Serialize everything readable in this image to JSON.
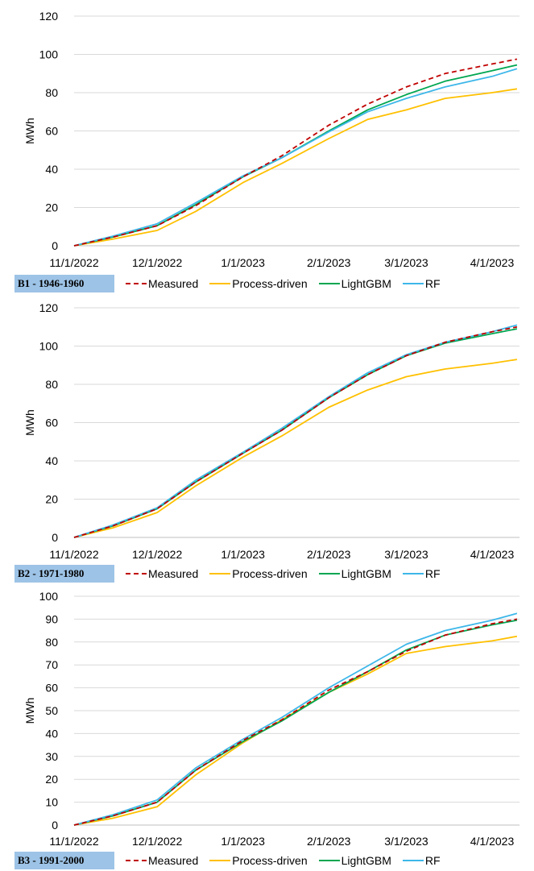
{
  "colors": {
    "Measured": "#c00000",
    "Process-driven": "#ffc000",
    "LightGBM": "#00a651",
    "RF": "#3db7e9"
  },
  "chart_data": [
    {
      "type": "line",
      "panel_label": "B1 - 1946-1960",
      "ylabel": "MWh",
      "ylim": [
        0,
        120
      ],
      "yticks": [
        "0",
        "20",
        "40",
        "60",
        "80",
        "100",
        "120"
      ],
      "xticks": [
        "11/1/2022",
        "12/1/2022",
        "1/1/2023",
        "2/1/2023",
        "3/1/2023",
        "4/1/2023"
      ],
      "x": [
        "11/1/2022",
        "11/15/2022",
        "12/1/2022",
        "12/15/2022",
        "1/1/2023",
        "1/15/2023",
        "2/1/2023",
        "2/15/2023",
        "3/1/2023",
        "3/15/2023",
        "4/1/2023",
        "4/10/2023"
      ],
      "series": [
        {
          "name": "Measured",
          "style": "dashed",
          "values": [
            0,
            4.5,
            10.5,
            21,
            36,
            47,
            63,
            74,
            83,
            90,
            95,
            97.5
          ]
        },
        {
          "name": "Process-driven",
          "style": "solid",
          "values": [
            0,
            3.5,
            8,
            18,
            33,
            43,
            56,
            66,
            71,
            77,
            80,
            82
          ]
        },
        {
          "name": "LightGBM",
          "style": "solid",
          "values": [
            0,
            4.5,
            10.5,
            21.5,
            36,
            46,
            60,
            71,
            79,
            86,
            91.5,
            94.5
          ]
        },
        {
          "name": "RF",
          "style": "solid",
          "values": [
            0,
            5,
            11.5,
            22.5,
            36.5,
            46,
            59.5,
            70,
            77,
            83,
            88.5,
            92.5
          ]
        }
      ]
    },
    {
      "type": "line",
      "panel_label": "B2 - 1971-1980",
      "ylabel": "MWh",
      "ylim": [
        0,
        120
      ],
      "yticks": [
        "0",
        "20",
        "40",
        "60",
        "80",
        "100",
        "120"
      ],
      "xticks": [
        "11/1/2022",
        "12/1/2022",
        "1/1/2023",
        "2/1/2023",
        "3/1/2023",
        "4/1/2023"
      ],
      "x": [
        "11/1/2022",
        "11/15/2022",
        "12/1/2022",
        "12/15/2022",
        "1/1/2023",
        "1/15/2023",
        "2/1/2023",
        "2/15/2023",
        "3/1/2023",
        "3/15/2023",
        "4/1/2023",
        "4/10/2023"
      ],
      "series": [
        {
          "name": "Measured",
          "style": "dashed",
          "values": [
            0,
            6,
            15,
            29,
            44,
            56,
            73,
            85,
            95,
            102,
            107.5,
            110
          ]
        },
        {
          "name": "Process-driven",
          "style": "solid",
          "values": [
            0,
            5,
            13,
            27,
            42,
            53,
            68,
            77,
            84,
            88,
            91,
            93
          ]
        },
        {
          "name": "LightGBM",
          "style": "solid",
          "values": [
            0,
            6,
            15,
            29,
            44,
            56,
            73,
            85,
            95,
            101.5,
            106.5,
            109
          ]
        },
        {
          "name": "RF",
          "style": "solid",
          "values": [
            0,
            6.5,
            15.5,
            30,
            44.5,
            57,
            73.5,
            86,
            95.5,
            102,
            107.5,
            111
          ]
        }
      ]
    },
    {
      "type": "line",
      "panel_label": "B3 - 1991-2000",
      "ylabel": "MWh",
      "ylim": [
        0,
        100
      ],
      "yticks": [
        "0",
        "10",
        "20",
        "30",
        "40",
        "50",
        "60",
        "70",
        "80",
        "90",
        "100"
      ],
      "xticks": [
        "11/1/2022",
        "12/1/2022",
        "1/1/2023",
        "2/1/2023",
        "3/1/2023",
        "4/1/2023"
      ],
      "x": [
        "11/1/2022",
        "11/15/2022",
        "12/1/2022",
        "12/15/2022",
        "1/1/2023",
        "1/15/2023",
        "2/1/2023",
        "2/15/2023",
        "3/1/2023",
        "3/15/2023",
        "4/1/2023",
        "4/10/2023"
      ],
      "series": [
        {
          "name": "Measured",
          "style": "dashed",
          "values": [
            0,
            4,
            10,
            24,
            37,
            46,
            59,
            67,
            76,
            83,
            88,
            90
          ]
        },
        {
          "name": "Process-driven",
          "style": "solid",
          "values": [
            0,
            3,
            8,
            22,
            36,
            46,
            58,
            66,
            75,
            78,
            80.5,
            82.5
          ]
        },
        {
          "name": "LightGBM",
          "style": "solid",
          "values": [
            0,
            4,
            10,
            24,
            36.5,
            45.5,
            58,
            67,
            76.5,
            83,
            87.5,
            89.5
          ]
        },
        {
          "name": "RF",
          "style": "solid",
          "values": [
            0,
            4.5,
            11,
            25,
            37.5,
            47,
            60,
            69.5,
            79,
            85,
            89.5,
            92.5
          ]
        }
      ]
    }
  ]
}
